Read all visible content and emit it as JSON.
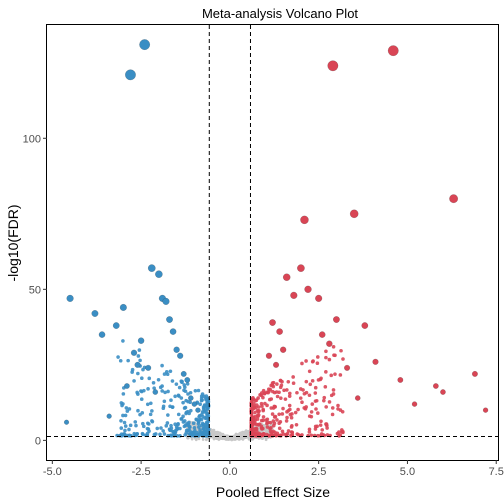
{
  "chart_data": {
    "type": "scatter",
    "title": "Meta-analysis Volcano Plot",
    "xlabel": "Pooled Effect Size",
    "ylabel": "-log10(FDR)",
    "xlim": [
      -5.15,
      7.55
    ],
    "ylim": [
      -6.5,
      137.5
    ],
    "x_ticks": [
      -5.0,
      -2.5,
      0.0,
      2.5,
      5.0,
      7.5
    ],
    "x_tick_labels": [
      "-5.0",
      "-2.5",
      "0.0",
      "2.5",
      "5.0",
      "7.5"
    ],
    "y_ticks": [
      0,
      50,
      100
    ],
    "y_tick_labels": [
      "0",
      "50",
      "100"
    ],
    "grid": false,
    "thresholds": {
      "effect_size": [
        -0.58,
        0.58
      ],
      "neg_log10_fdr": 1.3
    },
    "colors": {
      "down": "#3a8ec4",
      "up": "#d94555",
      "ns": "#c8c8c8"
    },
    "series": [
      {
        "key": "down",
        "color": "#3a8ec4",
        "x": [
          -2.4,
          -2.8,
          -4.5,
          -3.8,
          -3.0,
          -2.2,
          -2.0,
          -1.9,
          -1.8,
          -1.7,
          -1.6,
          -1.5,
          -3.6,
          -2.6,
          -3.2,
          -2.5,
          -1.4,
          -1.3,
          -1.2,
          -2.9,
          -2.1,
          -1.1,
          -1.0,
          -0.9,
          -4.6,
          -3.4,
          -2.3,
          -2.7
        ],
        "y": [
          131,
          121,
          47,
          42,
          44,
          57,
          55,
          47,
          46,
          40,
          36,
          30,
          35,
          25,
          38,
          33,
          28,
          22,
          20,
          18,
          16,
          14,
          12,
          10,
          6,
          8,
          24,
          29
        ]
      },
      {
        "key": "up",
        "color": "#d94555",
        "x": [
          4.6,
          2.9,
          6.3,
          2.1,
          3.5,
          2.0,
          1.6,
          2.2,
          1.8,
          2.5,
          3.0,
          3.8,
          2.8,
          4.1,
          6.9,
          5.8,
          1.2,
          1.4,
          1.5,
          2.6,
          3.3,
          4.8,
          6.0,
          7.2,
          5.2,
          3.6,
          1.1,
          1.3
        ],
        "y": [
          129,
          124,
          80,
          73,
          75,
          57,
          54,
          50,
          48,
          47,
          40,
          38,
          32,
          26,
          22,
          18,
          39,
          36,
          30,
          35,
          24,
          20,
          16,
          10,
          12,
          14,
          28,
          25
        ]
      }
    ]
  }
}
